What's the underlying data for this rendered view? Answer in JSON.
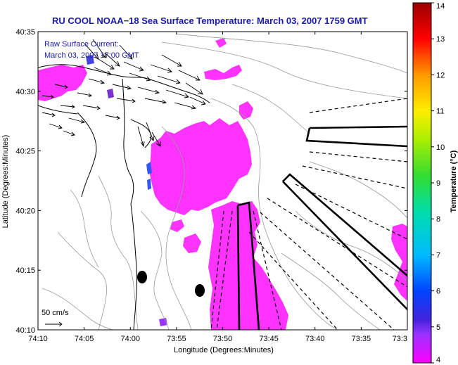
{
  "title": "RU COOL  NOAA−18  Sea Surface Temperature:  March 03, 2007 1759 GMT",
  "current_legend": {
    "line1": "Raw Surface Current:",
    "line2": "March 03, 2007 17:00 GMT"
  },
  "scale_label": "50 cm/s",
  "x_axis": {
    "label": "Longitude (Degrees:Minutes)",
    "ticks": [
      "74:10",
      "74:05",
      "74:00",
      "73:55",
      "73:50",
      "73:45",
      "73:40",
      "73:35",
      "73:3"
    ]
  },
  "y_axis": {
    "label": "Latitude (Degrees:Minutes)",
    "ticks": [
      "40:35",
      "40:30",
      "40:25",
      "40:20",
      "40:15",
      "40:10"
    ]
  },
  "colorbar": {
    "label": "Temperature (°C)",
    "ticks": [
      "14",
      "13",
      "12",
      "11",
      "10",
      "9",
      "8",
      "7",
      "6",
      "5",
      "4"
    ],
    "colors": [
      "#9b0000",
      "#ff0000",
      "#ff9900",
      "#ffee00",
      "#aaee00",
      "#33dd33",
      "#00dddd",
      "#0077ff",
      "#2222ee",
      "#7733cc",
      "#ff00ff"
    ]
  },
  "colors": {
    "sst_warm": "#ff33ff",
    "sst_cool": "#3355ff",
    "title_text": "#1a1aa6"
  }
}
